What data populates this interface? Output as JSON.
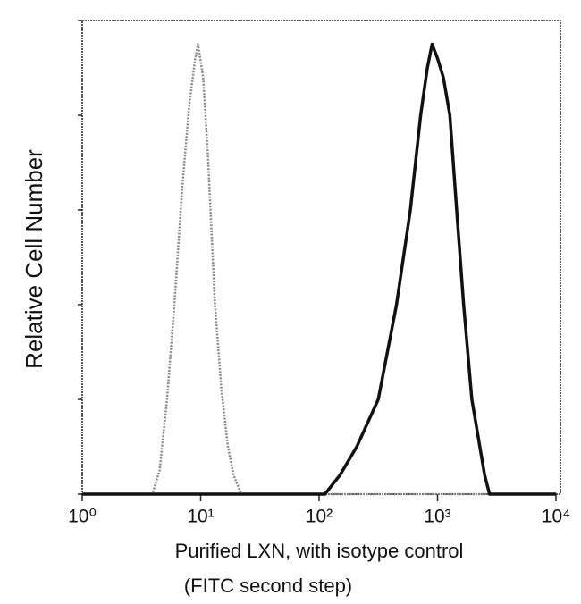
{
  "chart_data": {
    "type": "line",
    "ylabel": "Relative Cell Number",
    "xlabel": [
      "Purified LXN, with isotype control",
      "(FITC second step)"
    ],
    "log_x": true,
    "xlim": [
      1,
      10000
    ],
    "xticks": [
      {
        "value": 1,
        "label": "10⁰"
      },
      {
        "value": 10,
        "label": "10¹"
      },
      {
        "value": 100,
        "label": "10²"
      },
      {
        "value": 1000,
        "label": "10³"
      },
      {
        "value": 10000,
        "label": "10⁴"
      }
    ],
    "ylim": [
      0,
      100
    ],
    "yticks": [
      0,
      20,
      40,
      60,
      80,
      100
    ],
    "series": [
      {
        "color": "#8a8a8a",
        "dashed": true,
        "x": [
          1,
          3.9,
          4.5,
          5.2,
          6.0,
          7.0,
          8.0,
          9.0,
          9.5,
          10.5,
          11.5,
          13.2,
          15,
          17,
          19,
          22,
          10000
        ],
        "values": [
          0,
          0,
          5,
          20,
          40,
          65,
          82,
          92,
          95,
          88,
          72,
          40,
          22,
          10,
          4,
          0,
          0
        ]
      },
      {
        "color": "#111111",
        "dashed": false,
        "x": [
          1,
          112,
          150,
          208,
          316,
          450,
          590,
          720,
          820,
          900,
          1000,
          1120,
          1270,
          1450,
          1660,
          1950,
          2500,
          2750,
          10000
        ],
        "values": [
          0,
          0,
          4,
          10,
          20,
          40,
          60,
          80,
          90,
          95,
          92,
          88,
          80,
          60,
          40,
          20,
          4,
          0,
          0
        ]
      }
    ]
  }
}
